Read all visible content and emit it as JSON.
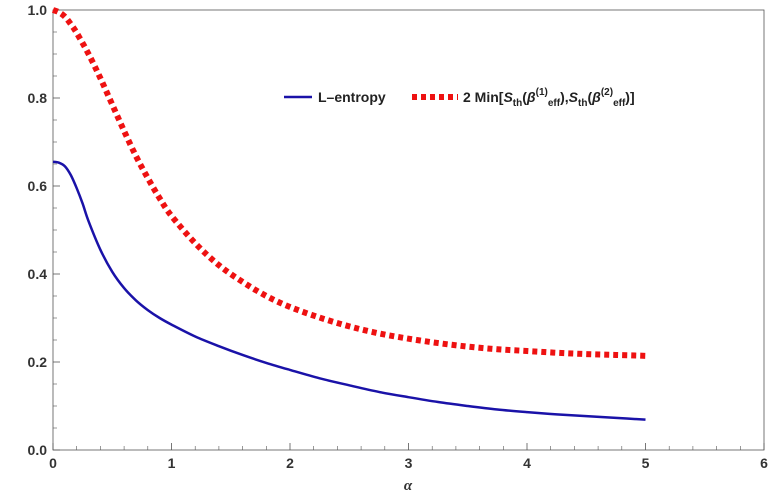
{
  "chart_data": {
    "type": "line",
    "title": "",
    "xlabel": "α",
    "ylabel": "",
    "xlim": [
      0,
      6
    ],
    "ylim": [
      0,
      1
    ],
    "xticks": [
      "0",
      "1",
      "2",
      "3",
      "4",
      "5",
      "6"
    ],
    "yticks": [
      "0.0",
      "0.2",
      "0.4",
      "0.6",
      "0.8",
      "1.0"
    ],
    "grid": false,
    "legend_position": "top-right",
    "legend": {
      "entry1": "L–entropy",
      "entry2": {
        "prefix": "2 Min[",
        "S1": "S",
        "S1_sub": "th",
        "open1": "(",
        "beta1": "β",
        "beta1_sup": "(1)",
        "beta1_sub": "eff",
        "sep": "),",
        "S2": "S",
        "S2_sub": "th",
        "open2": "(",
        "beta2": "β",
        "beta2_sup": "(2)",
        "beta2_sub": "eff",
        "suffix": ")]"
      }
    },
    "series": [
      {
        "color": "#1a12a8",
        "style": "solid",
        "x": [
          0,
          0.05,
          0.1,
          0.15,
          0.2,
          0.25,
          0.3,
          0.4,
          0.5,
          0.6,
          0.7,
          0.8,
          0.9,
          1.0,
          1.2,
          1.4,
          1.6,
          1.8,
          2.0,
          2.25,
          2.5,
          2.75,
          3.0,
          3.25,
          3.5,
          3.75,
          4.0,
          4.25,
          4.5,
          4.75,
          5.0
        ],
        "y": [
          0.655,
          0.653,
          0.645,
          0.625,
          0.595,
          0.56,
          0.52,
          0.455,
          0.405,
          0.368,
          0.34,
          0.318,
          0.3,
          0.285,
          0.258,
          0.236,
          0.216,
          0.198,
          0.182,
          0.163,
          0.147,
          0.132,
          0.12,
          0.109,
          0.1,
          0.092,
          0.086,
          0.081,
          0.077,
          0.073,
          0.069
        ]
      },
      {
        "color": "#ee1111",
        "style": "dotted",
        "x": [
          0,
          0.05,
          0.1,
          0.15,
          0.2,
          0.3,
          0.4,
          0.5,
          0.6,
          0.7,
          0.8,
          0.9,
          1.0,
          1.2,
          1.4,
          1.6,
          1.8,
          2.0,
          2.25,
          2.5,
          2.75,
          3.0,
          3.25,
          3.5,
          3.75,
          4.0,
          4.25,
          4.5,
          4.75,
          5.0
        ],
        "y": [
          1.0,
          0.995,
          0.985,
          0.968,
          0.948,
          0.9,
          0.845,
          0.785,
          0.725,
          0.668,
          0.618,
          0.572,
          0.532,
          0.47,
          0.42,
          0.382,
          0.35,
          0.325,
          0.301,
          0.281,
          0.265,
          0.253,
          0.243,
          0.235,
          0.229,
          0.225,
          0.221,
          0.218,
          0.216,
          0.214
        ]
      }
    ]
  }
}
